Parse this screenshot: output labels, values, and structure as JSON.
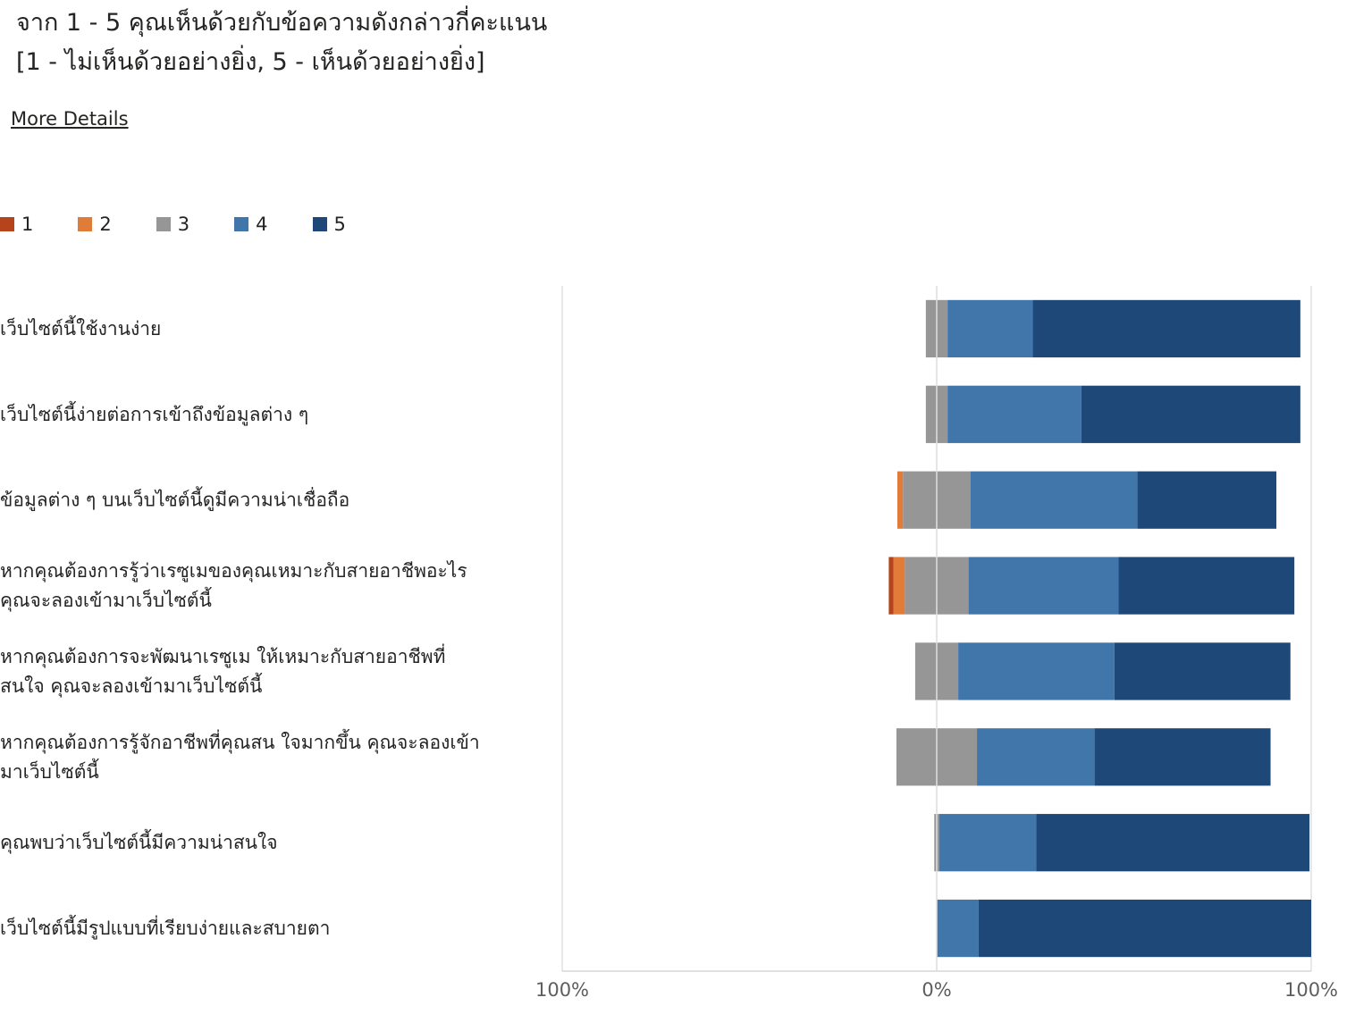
{
  "title": {
    "line1": "จาก 1 - 5 คุณเห็นด้วยกับข้อความดังกล่าวกี่คะแนน",
    "line2": "[1 - ไม่เห็นด้วยอย่างยิ่ง, 5 - เห็นด้วยอย่างยิ่ง]"
  },
  "more_details_label": "More Details",
  "legend": [
    {
      "label": "1",
      "color": "#b5441d"
    },
    {
      "label": "2",
      "color": "#e07b39"
    },
    {
      "label": "3",
      "color": "#969696"
    },
    {
      "label": "4",
      "color": "#4176ab"
    },
    {
      "label": "5",
      "color": "#1e4878"
    }
  ],
  "chart_data": {
    "type": "bar",
    "orientation": "horizontal",
    "stacking": "diverging",
    "categories": [
      [
        "เว็บไซต์นี้ใช้งานง่าย"
      ],
      [
        "เว็บไซต์นี้ง่ายต่อการเข้าถึงข้อมูลต่าง ๆ"
      ],
      [
        "ข้อมูลต่าง ๆ บนเว็บไซต์นี้ดูมีความน่าเชื่อถือ"
      ],
      [
        "หากคุณต้องการรู้ว่าเรซูเมของคุณเหมาะกับสายอาชีพอะไร",
        "คุณจะลองเข้ามาเว็บไซต์นี้"
      ],
      [
        "หากคุณต้องการจะพัฒนาเรซูเม ให้เหมาะกับสายอาชีพที่",
        "สนใจ คุณจะลองเข้ามาเว็บไซต์นี้"
      ],
      [
        "หากคุณต้องการรู้จักอาชีพที่คุณสน ใจมากขึ้น คุณจะลองเข้า",
        "มาเว็บไซต์นี้"
      ],
      [
        "คุณพบว่าเว็บไซต์นี้มีความน่าสนใจ"
      ],
      [
        "เว็บไซต์นี้มีรูปแบบที่เรียบง่ายและสบายตา"
      ]
    ],
    "series": [
      {
        "name": "1",
        "values": [
          0,
          0,
          0,
          1.3,
          0,
          0,
          0,
          0
        ]
      },
      {
        "name": "2",
        "values": [
          0,
          0,
          1.5,
          3,
          0,
          0,
          0,
          0
        ]
      },
      {
        "name": "3",
        "values": [
          5.8,
          5.8,
          18,
          17,
          11.5,
          21.5,
          1.3,
          0
        ]
      },
      {
        "name": "4",
        "values": [
          22.7,
          35.7,
          44.6,
          40,
          41.7,
          31.4,
          25.9,
          11.2
        ]
      },
      {
        "name": "5",
        "values": [
          71.5,
          58.5,
          37.1,
          47,
          47,
          47,
          73,
          88.8
        ]
      }
    ],
    "xlim": [
      -100,
      100
    ],
    "x_tick_labels": [
      "100%",
      "0%",
      "100%"
    ],
    "grid": true,
    "legend_position": "top-left"
  }
}
